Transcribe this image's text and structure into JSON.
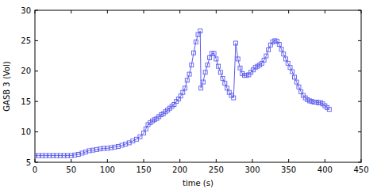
{
  "chart_data": {
    "type": "line",
    "x_label": "time (s)",
    "y_label": "GASB 3 (Vol)",
    "x": [
      0,
      5,
      10,
      15,
      20,
      25,
      30,
      35,
      40,
      45,
      50,
      55,
      60,
      65,
      70,
      75,
      80,
      85,
      90,
      95,
      100,
      105,
      110,
      115,
      120,
      125,
      130,
      135,
      140,
      145,
      150,
      153,
      156,
      159,
      162,
      165,
      168,
      171,
      174,
      177,
      180,
      183,
      186,
      189,
      192,
      195,
      198,
      201,
      204,
      207,
      210,
      213,
      216,
      219,
      222,
      225,
      228,
      229,
      232,
      235,
      238,
      241,
      244,
      247,
      250,
      253,
      256,
      259,
      262,
      265,
      268,
      271,
      274,
      277,
      280,
      283,
      286,
      289,
      292,
      295,
      298,
      301,
      304,
      307,
      310,
      313,
      316,
      319,
      322,
      325,
      328,
      331,
      334,
      337,
      340,
      343,
      346,
      349,
      352,
      355,
      358,
      361,
      364,
      367,
      370,
      373,
      376,
      379,
      382,
      385,
      388,
      391,
      394,
      397,
      400,
      403,
      406
    ],
    "values": [
      6.1,
      6.1,
      6.1,
      6.1,
      6.1,
      6.1,
      6.1,
      6.1,
      6.1,
      6.1,
      6.1,
      6.2,
      6.3,
      6.5,
      6.7,
      6.9,
      7.0,
      7.1,
      7.2,
      7.3,
      7.3,
      7.4,
      7.5,
      7.6,
      7.8,
      8.0,
      8.2,
      8.5,
      8.8,
      9.2,
      9.8,
      10.5,
      11.2,
      11.5,
      11.8,
      12.0,
      12.2,
      12.5,
      12.8,
      13.0,
      13.3,
      13.6,
      13.9,
      14.2,
      14.5,
      15.0,
      15.4,
      15.9,
      16.5,
      17.2,
      18.5,
      19.5,
      21.0,
      23.0,
      24.8,
      26.0,
      26.6,
      17.2,
      18.2,
      19.8,
      21.0,
      22.2,
      22.9,
      22.9,
      22.0,
      20.8,
      19.8,
      18.8,
      18.0,
      17.2,
      16.5,
      16.0,
      15.6,
      24.6,
      22.0,
      20.5,
      19.6,
      19.3,
      19.3,
      19.4,
      19.8,
      20.2,
      20.6,
      20.8,
      21.0,
      21.3,
      21.8,
      22.5,
      23.5,
      24.3,
      24.8,
      25.0,
      24.9,
      24.4,
      23.6,
      22.8,
      22.0,
      21.3,
      20.6,
      19.9,
      19.0,
      18.2,
      17.4,
      16.6,
      16.0,
      15.6,
      15.3,
      15.1,
      15.0,
      14.9,
      14.9,
      14.8,
      14.8,
      14.6,
      14.3,
      14.0,
      13.7
    ],
    "color": "#5b5bef",
    "marker": "square",
    "xlim": [
      0,
      450
    ],
    "xticks": [
      0,
      50,
      100,
      150,
      200,
      250,
      300,
      350,
      400,
      450
    ],
    "ylim": [
      5,
      30
    ],
    "yticks": [
      5,
      10,
      15,
      20,
      25,
      30
    ]
  }
}
